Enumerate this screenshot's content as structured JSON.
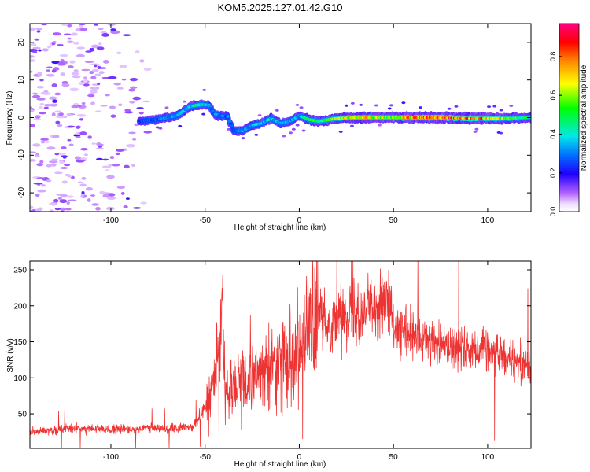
{
  "title": "KOM5.2025.127.01.42.G10",
  "chart_data": [
    {
      "type": "heatmap",
      "xlabel": "Height of straight line (km)",
      "ylabel": "Frequency (Hz)",
      "xlim": [
        -143,
        123
      ],
      "ylim": [
        -25,
        25
      ],
      "xticks": [
        -100,
        -50,
        0,
        50,
        100
      ],
      "yticks": [
        -20,
        -10,
        0,
        10,
        20
      ],
      "colorbar": {
        "label": "Normalized spectral amplitude",
        "range": [
          0,
          0.97
        ],
        "ticks": [
          0.0,
          0.2,
          0.4,
          0.6,
          0.8
        ],
        "colormap": "rainbow (purple-blue-cyan-green-yellow-orange-red-magenta)"
      },
      "ridge": {
        "x": [
          -85,
          -75,
          -65,
          -58,
          -52,
          -48,
          -45,
          -42,
          -38,
          -35,
          -30,
          -25,
          -20,
          -15,
          -10,
          -5,
          0,
          5,
          10,
          20,
          30,
          50,
          70,
          90,
          110,
          123
        ],
        "frequency": [
          -1,
          -0.5,
          0.5,
          3,
          3.5,
          3.3,
          1,
          0.5,
          0.3,
          -3.5,
          -3.5,
          -2,
          -1.5,
          -0.2,
          -1.5,
          -1,
          0.5,
          -0.5,
          -1,
          -0.2,
          0,
          0,
          0,
          -0.2,
          -0.2,
          0
        ],
        "amplitude": [
          0.25,
          0.3,
          0.35,
          0.42,
          0.45,
          0.35,
          0.3,
          0.3,
          0.3,
          0.3,
          0.35,
          0.35,
          0.35,
          0.4,
          0.35,
          0.35,
          0.35,
          0.5,
          0.5,
          0.6,
          0.7,
          0.65,
          0.85,
          0.85,
          0.6,
          0.4
        ]
      },
      "noise_region_x": [
        -143,
        -80
      ]
    },
    {
      "type": "line",
      "xlabel": "Height of straight line (km)",
      "ylabel": "SNR (v/v)",
      "xlim": [
        -143,
        123
      ],
      "ylim": [
        2,
        262
      ],
      "xticks": [
        -100,
        -50,
        0,
        50,
        100
      ],
      "yticks": [
        50,
        100,
        150,
        200,
        250
      ],
      "color": "#ee3333",
      "series": [
        {
          "x": [
            -143,
            -120,
            -100,
            -80,
            -60,
            -55,
            -50,
            -45,
            -42,
            -41,
            -40,
            -38,
            -35,
            -33,
            -30,
            -25,
            -20,
            -15,
            -10,
            -5,
            0,
            5,
            10,
            15,
            20,
            25,
            30,
            35,
            40,
            45,
            48,
            50,
            55,
            60,
            70,
            80,
            90,
            100,
            110,
            115,
            120,
            123
          ],
          "values": [
            25,
            30,
            28,
            30,
            30,
            35,
            60,
            90,
            140,
            250,
            120,
            70,
            100,
            80,
            90,
            100,
            105,
            115,
            125,
            135,
            145,
            165,
            185,
            175,
            185,
            190,
            195,
            195,
            200,
            205,
            200,
            165,
            160,
            155,
            150,
            145,
            140,
            140,
            130,
            125,
            120,
            115
          ]
        }
      ]
    }
  ]
}
